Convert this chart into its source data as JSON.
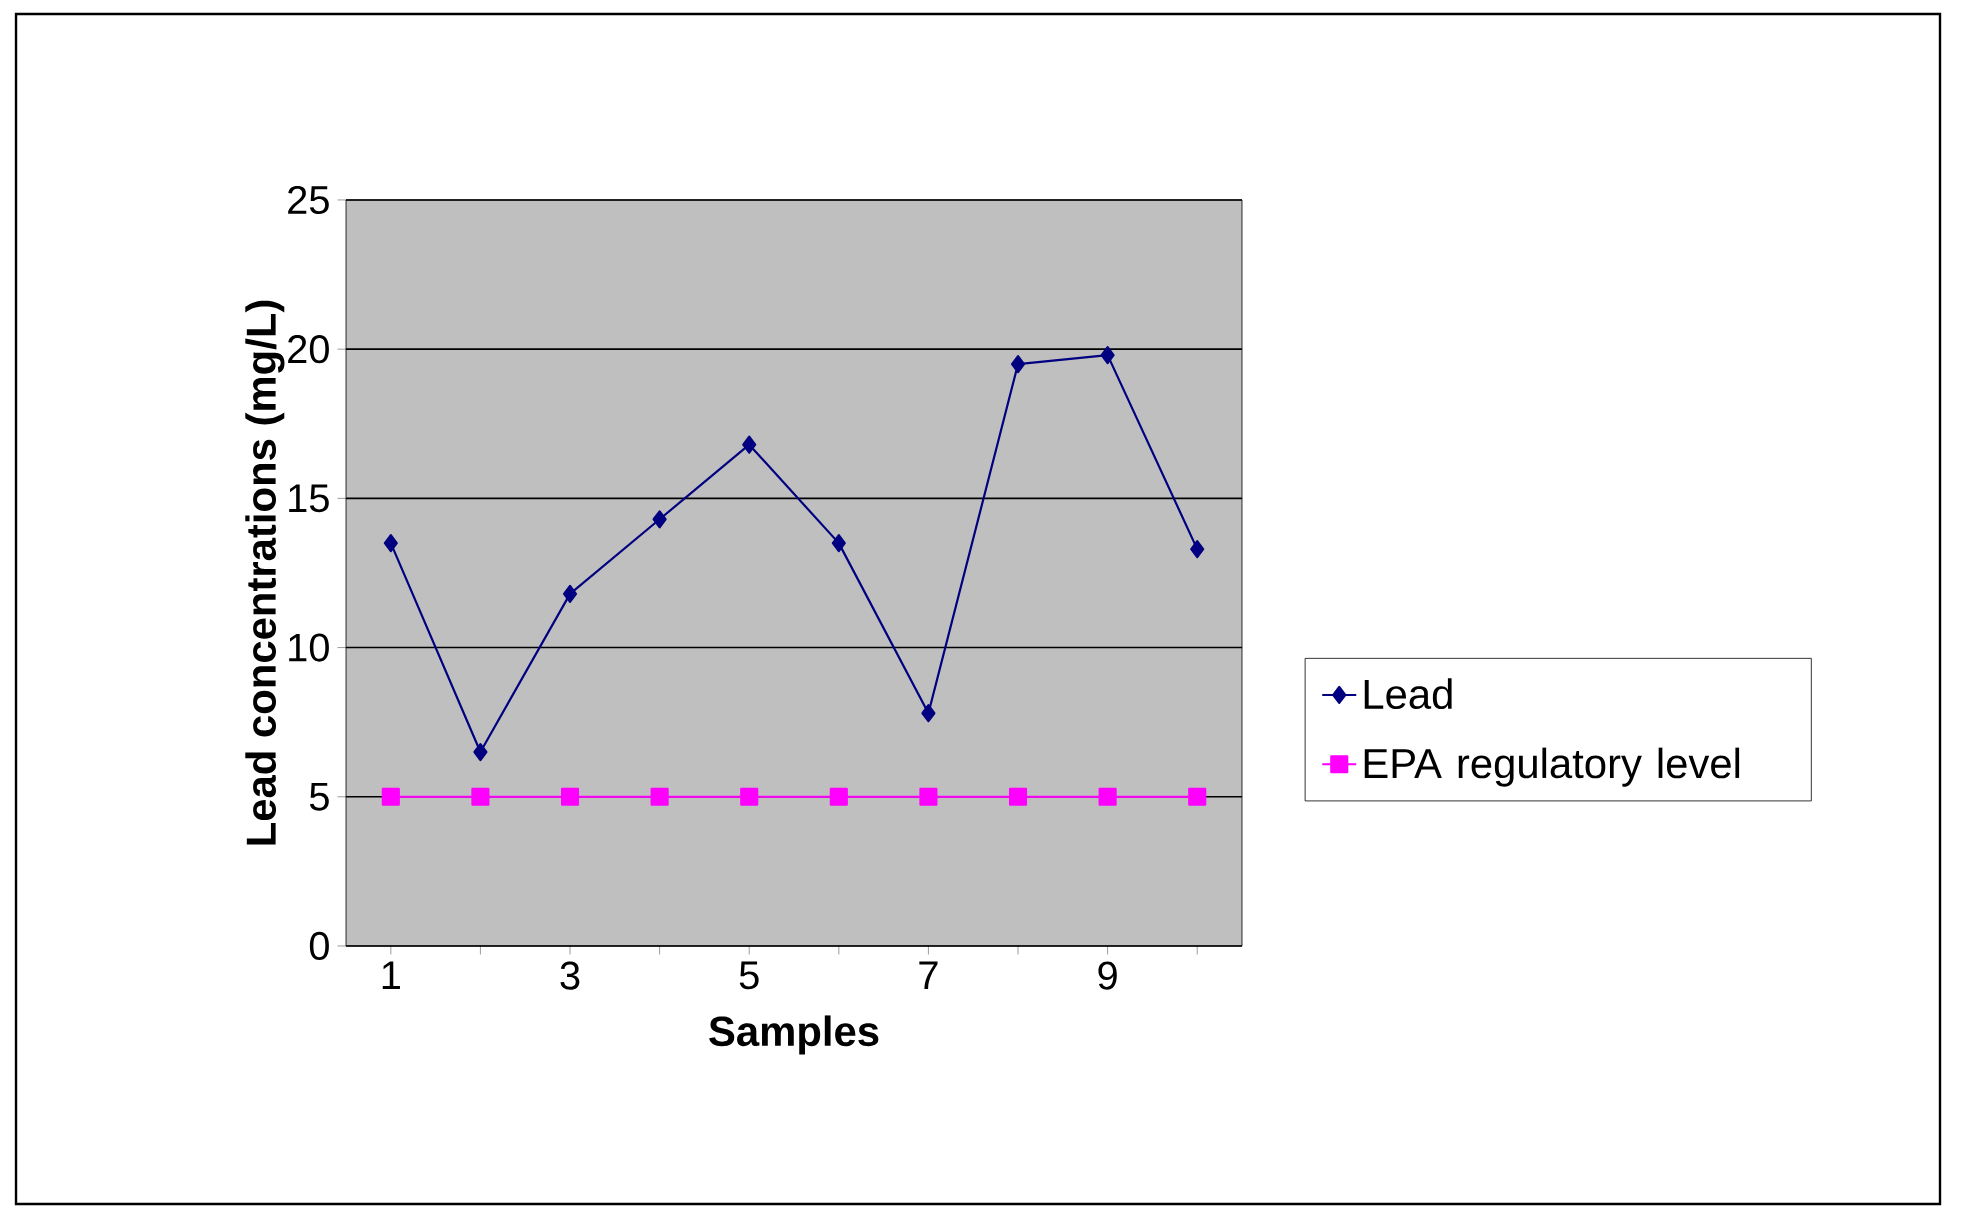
{
  "chart_data": {
    "type": "line",
    "xlabel": "Samples",
    "ylabel": "Lead concentrations (mg/L)",
    "categories": [
      "1",
      null,
      "3",
      null,
      "5",
      null,
      "7",
      null,
      "9",
      null
    ],
    "series": [
      {
        "name": "Lead",
        "color": "#000080",
        "marker": "diamond",
        "values": [
          13.5,
          6.5,
          11.8,
          14.3,
          16.8,
          13.5,
          7.8,
          19.5,
          19.8,
          13.3
        ]
      },
      {
        "name": "EPA regulatory level",
        "color": "#ff00ff",
        "marker": "square",
        "values": [
          5,
          5,
          5,
          5,
          5,
          5,
          5,
          5,
          5,
          5
        ]
      }
    ],
    "ylim": [
      0,
      25
    ],
    "yticks": [
      0,
      5,
      10,
      15,
      20,
      25
    ],
    "grid": "y",
    "legend": "right",
    "line_style": "solid"
  }
}
